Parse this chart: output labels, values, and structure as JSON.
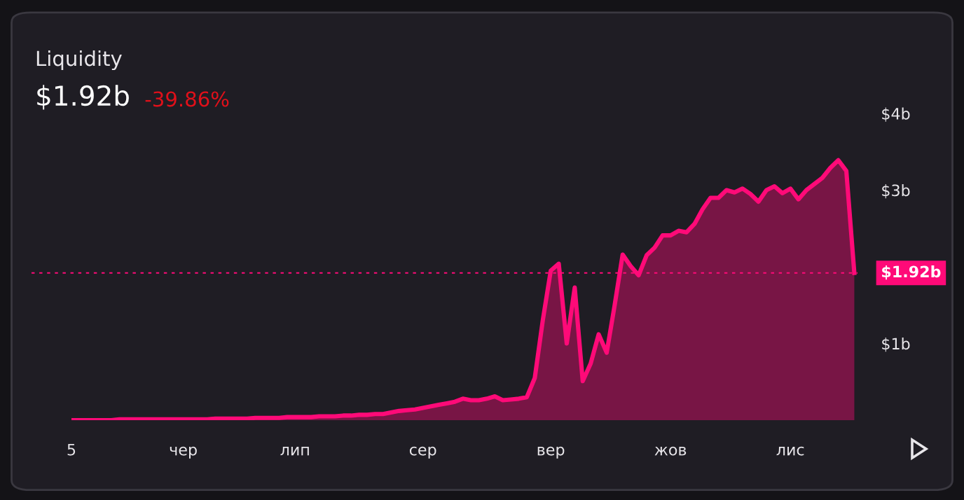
{
  "chart_data": {
    "type": "area",
    "title": "Liquidity",
    "subtitle": "$1.92b",
    "annotations": [
      "-39.86%"
    ],
    "categories": [
      "5",
      null,
      null,
      null,
      null,
      null,
      null,
      null,
      null,
      null,
      null,
      null,
      null,
      null,
      "чер",
      null,
      null,
      null,
      null,
      null,
      null,
      null,
      null,
      null,
      null,
      null,
      null,
      null,
      "лип",
      null,
      null,
      null,
      null,
      null,
      null,
      null,
      null,
      null,
      null,
      null,
      null,
      null,
      null,
      null,
      "сер",
      null,
      null,
      null,
      null,
      null,
      null,
      null,
      null,
      null,
      null,
      null,
      null,
      null,
      null,
      null,
      "вер",
      null,
      null,
      null,
      null,
      null,
      null,
      null,
      null,
      null,
      null,
      null,
      null,
      null,
      null,
      "жов",
      null,
      null,
      null,
      null,
      null,
      null,
      null,
      null,
      null,
      null,
      null,
      null,
      null,
      null,
      "лис",
      null,
      null,
      null,
      null,
      null,
      null,
      null,
      null
    ],
    "series": [
      {
        "color": "#ff0a78",
        "values": [
          0,
          0,
          0,
          0,
          0,
          0,
          0.01,
          0.01,
          0.01,
          0.01,
          0.01,
          0.01,
          0.01,
          0.01,
          0.01,
          0.01,
          0.01,
          0.01,
          0.02,
          0.02,
          0.02,
          0.02,
          0.02,
          0.03,
          0.03,
          0.03,
          0.03,
          0.04,
          0.04,
          0.04,
          0.04,
          0.05,
          0.05,
          0.05,
          0.06,
          0.06,
          0.07,
          0.07,
          0.08,
          0.08,
          0.1,
          0.12,
          0.13,
          0.14,
          0.16,
          0.18,
          0.2,
          0.22,
          0.24,
          0.28,
          0.26,
          0.26,
          0.28,
          0.31,
          0.26,
          0.27,
          0.28,
          0.3,
          0.55,
          1.3,
          1.95,
          2.04,
          1.0,
          1.73,
          0.51,
          0.74,
          1.12,
          0.88,
          1.5,
          2.16,
          2.01,
          1.89,
          2.15,
          2.25,
          2.41,
          2.41,
          2.47,
          2.45,
          2.56,
          2.75,
          2.9,
          2.9,
          3.0,
          2.97,
          3.02,
          2.95,
          2.85,
          3.0,
          3.05,
          2.96,
          3.02,
          2.88,
          3.0,
          3.08,
          3.16,
          3.29,
          3.39,
          3.25,
          1.92
        ]
      }
    ],
    "ylim": [
      0,
      4
    ],
    "yticks": [
      {
        "value": 1,
        "label": "$1b"
      },
      {
        "value": 3,
        "label": "$3b"
      },
      {
        "value": 4,
        "label": "$4b"
      }
    ],
    "ref_lines": [
      {
        "axis": "y",
        "value": 1.92,
        "label": "$1.92b",
        "color": "#ff0a78",
        "line_style": "dotted"
      }
    ],
    "grid": false,
    "legend": false
  }
}
